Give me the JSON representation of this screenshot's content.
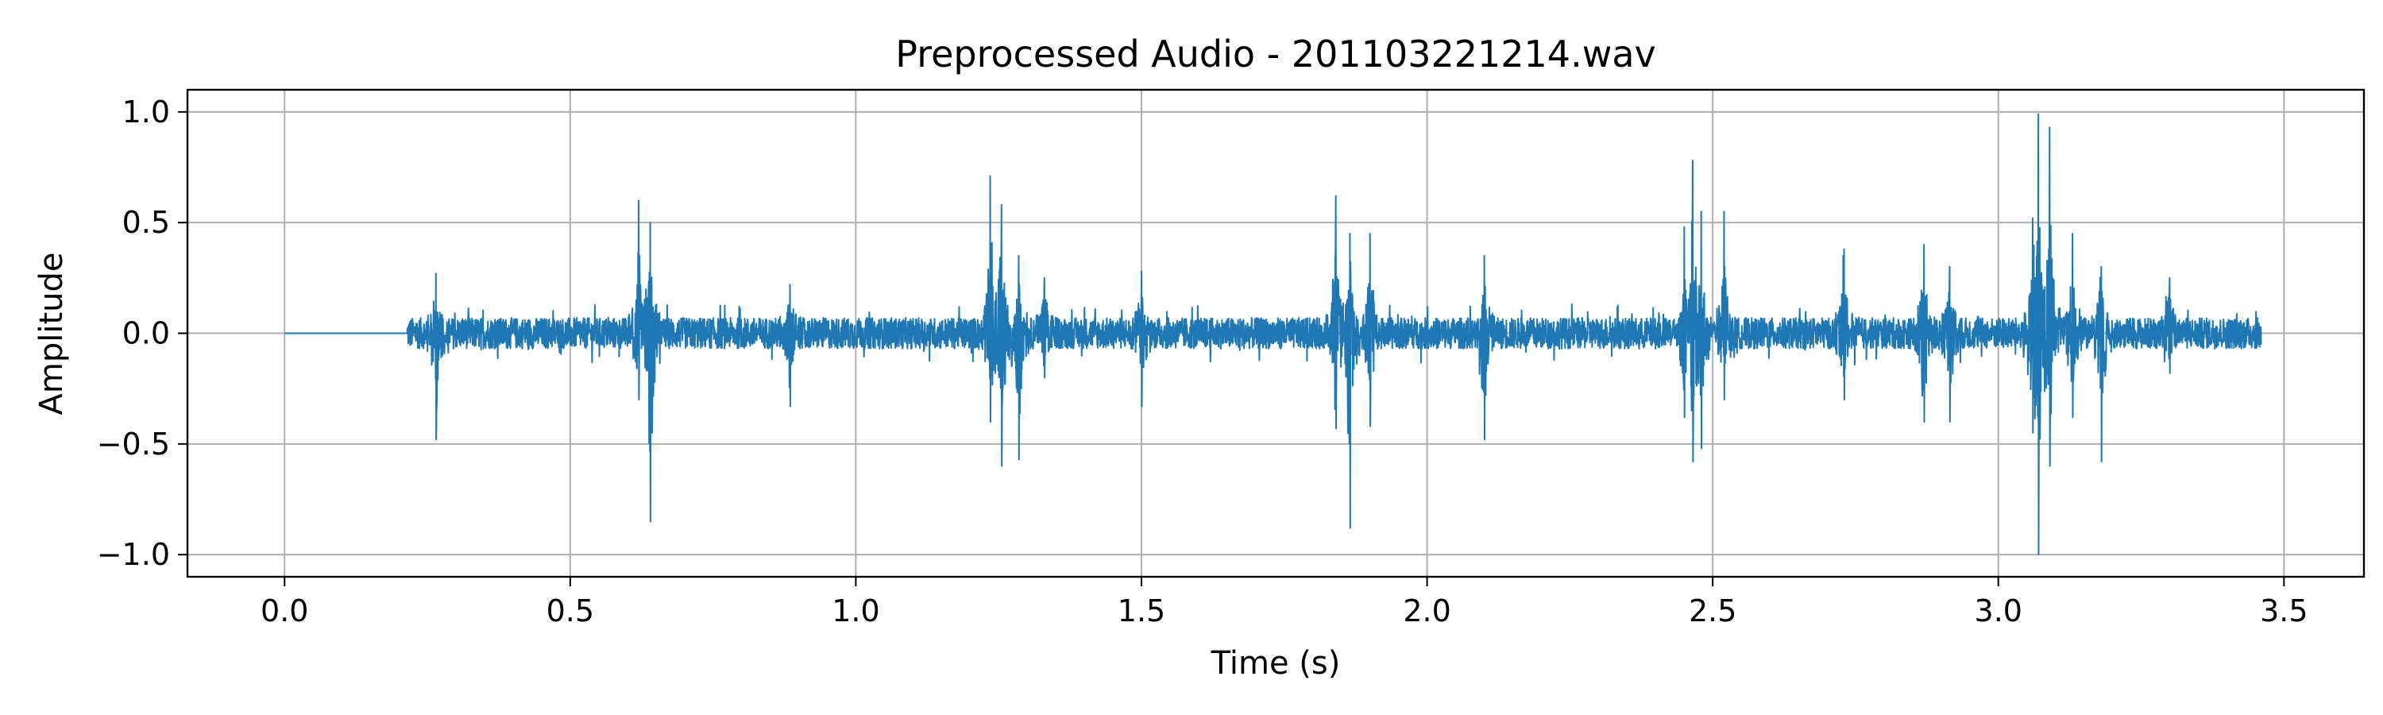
{
  "chart_data": {
    "type": "line",
    "title": "Preprocessed Audio - 201103221214.wav",
    "xlabel": "Time (s)",
    "ylabel": "Amplitude",
    "xlim": [
      -0.17,
      3.64
    ],
    "ylim": [
      -1.1,
      1.1
    ],
    "xticks": [
      0.0,
      0.5,
      1.0,
      1.5,
      2.0,
      2.5,
      3.0,
      3.5
    ],
    "xtick_labels": [
      "0.0",
      "0.5",
      "1.0",
      "1.5",
      "2.0",
      "2.5",
      "3.0",
      "3.5"
    ],
    "yticks": [
      1.0,
      0.5,
      0.0,
      -0.5,
      -1.0
    ],
    "ytick_labels": [
      "1.0",
      "0.5",
      "0.0",
      "−0.5",
      "−1.0"
    ],
    "grid": true,
    "colors": {
      "series": "#1f77b4",
      "grid": "#b0b0b0",
      "axes": "#000000"
    },
    "series": [
      {
        "duration": 3.46,
        "silence_end": 0.215,
        "noise_amplitude": 0.07,
        "bursts": [
          {
            "t": 0.265,
            "max": 0.27,
            "min": -0.48
          },
          {
            "t": 0.62,
            "max": 0.6,
            "min": -0.3
          },
          {
            "t": 0.64,
            "max": 0.5,
            "min": -0.85
          },
          {
            "t": 0.885,
            "max": 0.22,
            "min": -0.33
          },
          {
            "t": 1.235,
            "max": 0.71,
            "min": -0.4
          },
          {
            "t": 1.255,
            "max": 0.58,
            "min": -0.6
          },
          {
            "t": 1.285,
            "max": 0.35,
            "min": -0.57
          },
          {
            "t": 1.33,
            "max": 0.25,
            "min": -0.2
          },
          {
            "t": 1.5,
            "max": 0.28,
            "min": -0.33
          },
          {
            "t": 1.84,
            "max": 0.62,
            "min": -0.43
          },
          {
            "t": 1.865,
            "max": 0.45,
            "min": -0.88
          },
          {
            "t": 1.9,
            "max": 0.45,
            "min": -0.42
          },
          {
            "t": 2.1,
            "max": 0.35,
            "min": -0.48
          },
          {
            "t": 2.45,
            "max": 0.48,
            "min": -0.38
          },
          {
            "t": 2.465,
            "max": 0.78,
            "min": -0.58
          },
          {
            "t": 2.48,
            "max": 0.55,
            "min": -0.52
          },
          {
            "t": 2.52,
            "max": 0.55,
            "min": -0.3
          },
          {
            "t": 2.73,
            "max": 0.38,
            "min": -0.3
          },
          {
            "t": 2.87,
            "max": 0.4,
            "min": -0.4
          },
          {
            "t": 2.915,
            "max": 0.3,
            "min": -0.4
          },
          {
            "t": 3.06,
            "max": 0.52,
            "min": -0.45
          },
          {
            "t": 3.07,
            "max": 0.99,
            "min": -1.0
          },
          {
            "t": 3.09,
            "max": 0.93,
            "min": -0.6
          },
          {
            "t": 3.13,
            "max": 0.45,
            "min": -0.38
          },
          {
            "t": 3.18,
            "max": 0.3,
            "min": -0.58
          },
          {
            "t": 3.3,
            "max": 0.25,
            "min": -0.18
          }
        ]
      }
    ]
  }
}
